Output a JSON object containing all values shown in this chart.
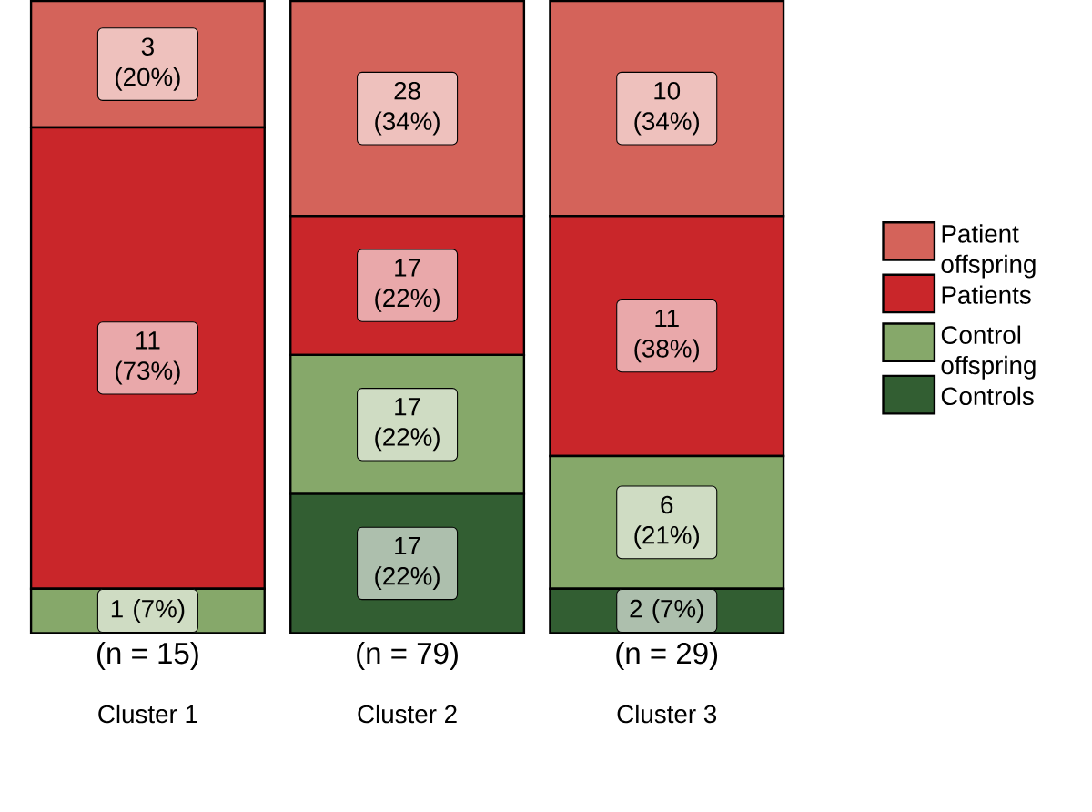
{
  "chart_data": {
    "type": "bar",
    "stacked": true,
    "categories": [
      "Cluster 1",
      "Cluster 2",
      "Cluster 3"
    ],
    "series": [
      {
        "name": "Controls",
        "color": "#325e32",
        "values": [
          0,
          22,
          7
        ],
        "value_labels": [
          null,
          "17 (22%)",
          "2 (7%)"
        ]
      },
      {
        "name": "Control offspring",
        "color": "#86a86a",
        "values": [
          7,
          22,
          21
        ],
        "value_labels": [
          "1 (7%)",
          "17 (22%)",
          "6 (21%)"
        ]
      },
      {
        "name": "Patients",
        "color": "#c9262a",
        "values": [
          73,
          22,
          38
        ],
        "value_labels": [
          "11 (73%)",
          "17 (22%)",
          "11 (38%)"
        ]
      },
      {
        "name": "Patient offspring",
        "color": "#d4635a",
        "values": [
          20,
          34,
          34
        ],
        "value_labels": [
          "3 (20%)",
          "28 (34%)",
          "10 (34%)"
        ]
      }
    ],
    "ylim": [
      0,
      100
    ],
    "tick_labels": "x",
    "legend": "right",
    "annotations": [
      "(n = 15)",
      "(n = 79)",
      "(n = 29)"
    ]
  }
}
